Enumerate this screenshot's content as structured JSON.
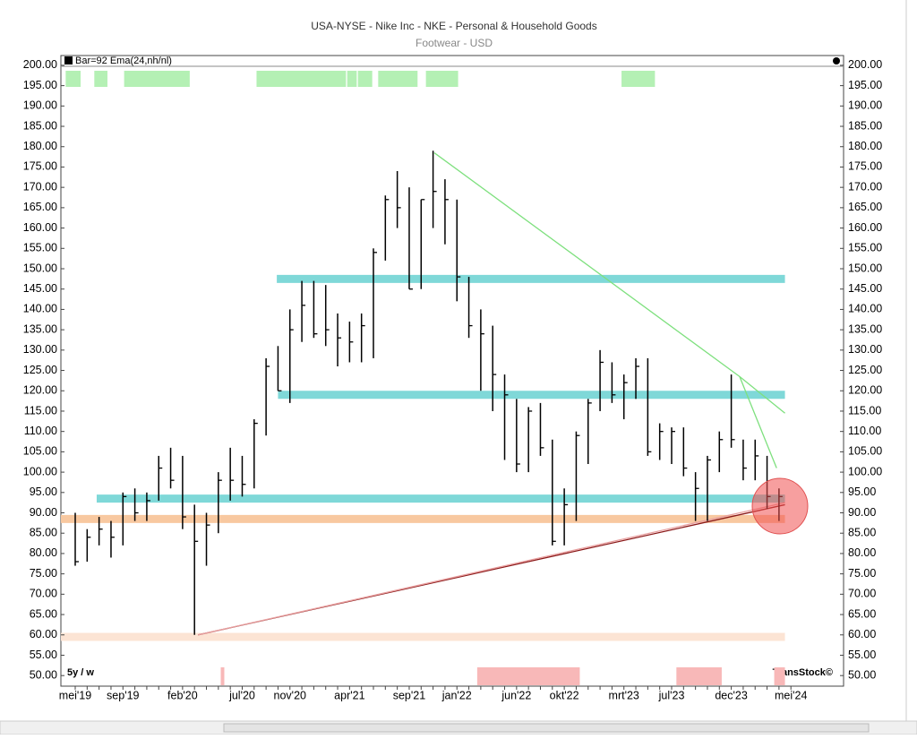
{
  "chart_data": {
    "type": "ohlc",
    "title": "USA-NYSE - Nike Inc - NKE - Personal & Household Goods",
    "subtitle": "Footwear - USD",
    "legend": "Bar=92  Ema(24,nh/nl)",
    "period": "5y / w",
    "brand": "TransStock©",
    "categories": [
      "mei'19",
      null,
      null,
      null,
      "sep'19",
      null,
      null,
      null,
      null,
      "feb'20",
      null,
      null,
      null,
      null,
      "jul'20",
      null,
      null,
      null,
      "nov'20",
      null,
      null,
      null,
      null,
      "apr'21",
      null,
      null,
      null,
      null,
      "sep'21",
      null,
      null,
      null,
      "jan'22",
      null,
      null,
      null,
      null,
      "jun'22",
      null,
      null,
      null,
      "okt'22",
      null,
      null,
      null,
      null,
      "mrt'23",
      null,
      null,
      null,
      "jul'23",
      null,
      null,
      null,
      null,
      "dec'23",
      null,
      null,
      null,
      null,
      "mei'24"
    ],
    "high": [
      90,
      86,
      89,
      88,
      95,
      96,
      95,
      104,
      106,
      104,
      92,
      90,
      100,
      106,
      104,
      113,
      128,
      131,
      140,
      147,
      147,
      146,
      139,
      137,
      139,
      155,
      168,
      174,
      170,
      167,
      179,
      172,
      167,
      148,
      140,
      136,
      124,
      118,
      116,
      117,
      108,
      96,
      110,
      118,
      130,
      127,
      124,
      128,
      128,
      112,
      111,
      111,
      100,
      104,
      110,
      124,
      108,
      108,
      104,
      96,
      null
    ],
    "low": [
      77,
      78,
      82,
      79,
      82,
      88,
      88,
      93,
      96,
      86,
      60,
      77,
      85,
      93,
      94,
      96,
      109,
      120,
      117,
      132,
      133,
      131,
      126,
      127,
      127,
      128,
      152,
      160,
      145,
      145,
      160,
      156,
      142,
      133,
      120,
      115,
      103,
      100,
      100,
      104,
      82,
      82,
      88,
      102,
      115,
      117,
      113,
      118,
      104,
      103,
      102,
      99,
      88,
      88,
      100,
      106,
      98,
      98,
      91,
      88,
      null
    ],
    "close": [
      78,
      84,
      86,
      84,
      94,
      90,
      93,
      101,
      98,
      89,
      83,
      87,
      98,
      98,
      97,
      112,
      126,
      120,
      135,
      141,
      134,
      135,
      133,
      132,
      136,
      154,
      167,
      165,
      145,
      167,
      169,
      167,
      148,
      136,
      134,
      124,
      119,
      102,
      115,
      106,
      83,
      92,
      109,
      117,
      127,
      119,
      122,
      126,
      105,
      110,
      110,
      101,
      96,
      103,
      108,
      108,
      101,
      104,
      94,
      94,
      null
    ],
    "bar_color": "#000000",
    "ylim": [
      47.4,
      202.4
    ],
    "yticks": [
      {
        "value": 50,
        "label": "50.00"
      },
      {
        "value": 55,
        "label": "55.00"
      },
      {
        "value": 60,
        "label": "60.00"
      },
      {
        "value": 65,
        "label": "65.00"
      },
      {
        "value": 70,
        "label": "70.00"
      },
      {
        "value": 75,
        "label": "75.00"
      },
      {
        "value": 80,
        "label": "80.00"
      },
      {
        "value": 85,
        "label": "85.00"
      },
      {
        "value": 90,
        "label": "90.00"
      },
      {
        "value": 95,
        "label": "95.00"
      },
      {
        "value": 100,
        "label": "100.00"
      },
      {
        "value": 105,
        "label": "105.00"
      },
      {
        "value": 110,
        "label": "110.00"
      },
      {
        "value": 115,
        "label": "115.00"
      },
      {
        "value": 120,
        "label": "120.00"
      },
      {
        "value": 125,
        "label": "125.00"
      },
      {
        "value": 130,
        "label": "130.00"
      },
      {
        "value": 135,
        "label": "135.00"
      },
      {
        "value": 140,
        "label": "140.00"
      },
      {
        "value": 145,
        "label": "145.00"
      },
      {
        "value": 150,
        "label": "150.00"
      },
      {
        "value": 155,
        "label": "155.00"
      },
      {
        "value": 160,
        "label": "160.00"
      },
      {
        "value": 165,
        "label": "165.00"
      },
      {
        "value": 170,
        "label": "170.00"
      },
      {
        "value": 175,
        "label": "175.00"
      },
      {
        "value": 180,
        "label": "180.00"
      },
      {
        "value": 185,
        "label": "185.00"
      },
      {
        "value": 190,
        "label": "190.00"
      },
      {
        "value": 195,
        "label": "195.00"
      },
      {
        "value": 200,
        "label": "200.00"
      }
    ],
    "levels": [
      {
        "value": 147.5,
        "from": 16.9,
        "color": "#7fd8d8"
      },
      {
        "value": 119,
        "from": 17,
        "color": "#7fd8d8"
      },
      {
        "value": 93.5,
        "from": 1.8,
        "color": "#7fd8d8"
      },
      {
        "value": 88.5,
        "from": -1.2,
        "color": "#f8c8a0"
      },
      {
        "value": 59.5,
        "from": -1.2,
        "color": "#fce4d4"
      }
    ],
    "trendlines": [
      {
        "points": [
          [
            10.3,
            60
          ],
          [
            59.5,
            92
          ]
        ],
        "color": "#8b1a1a"
      },
      {
        "points": [
          [
            10.3,
            60
          ],
          [
            59.5,
            92.5
          ]
        ],
        "color": "#e8a0a0"
      },
      {
        "points": [
          [
            30.1,
            178.5
          ],
          [
            55.7,
            123.5
          ],
          [
            59.5,
            114.5
          ]
        ],
        "color": "#7ee07e"
      },
      {
        "points": [
          [
            55.7,
            123.5
          ],
          [
            58.8,
            101
          ]
        ],
        "color": "#7ee07e"
      }
    ],
    "top_zones": [
      [
        -0.8,
        0.45
      ],
      [
        1.6,
        2.7
      ],
      [
        4.1,
        9.6
      ],
      [
        15.2,
        22.7
      ],
      [
        22.8,
        23.6
      ],
      [
        23.7,
        24.9
      ],
      [
        25.4,
        28.7
      ],
      [
        29.4,
        32.1
      ],
      [
        45.8,
        48.6
      ]
    ],
    "top_zone_color": "#b4f0b4",
    "bottom_zones": [
      [
        12.2,
        12.5
      ],
      [
        33.7,
        42.3
      ],
      [
        50.4,
        54.2
      ],
      [
        58.6,
        59.5
      ]
    ],
    "bottom_zone_color": "#f8b8b8"
  }
}
